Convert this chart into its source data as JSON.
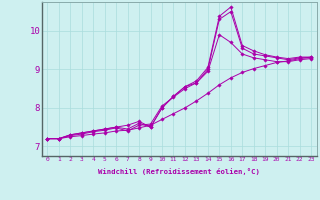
{
  "xlabel": "Windchill (Refroidissement éolien,°C)",
  "background_color": "#cef0f0",
  "grid_color": "#aadddd",
  "line_color": "#aa00aa",
  "xlim": [
    -0.5,
    23.5
  ],
  "ylim": [
    6.75,
    10.75
  ],
  "yticks": [
    7,
    8,
    9,
    10
  ],
  "xticks": [
    0,
    1,
    2,
    3,
    4,
    5,
    6,
    7,
    8,
    9,
    10,
    11,
    12,
    13,
    14,
    15,
    16,
    17,
    18,
    19,
    20,
    21,
    22,
    23
  ],
  "lines": [
    {
      "x": [
        0,
        1,
        2,
        3,
        4,
        5,
        6,
        7,
        8,
        9,
        10,
        11,
        12,
        13,
        14,
        15,
        16,
        17,
        18,
        19,
        20,
        21,
        22,
        23
      ],
      "y": [
        7.2,
        7.2,
        7.3,
        7.35,
        7.4,
        7.45,
        7.5,
        7.55,
        7.65,
        7.5,
        8.0,
        8.3,
        8.55,
        8.65,
        9.0,
        10.3,
        10.5,
        9.55,
        9.4,
        9.35,
        9.3,
        9.25,
        9.3,
        9.3
      ]
    },
    {
      "x": [
        0,
        1,
        2,
        3,
        4,
        5,
        6,
        7,
        8,
        9,
        10,
        11,
        12,
        13,
        14,
        15,
        16,
        17,
        18,
        19,
        20,
        21,
        22,
        23
      ],
      "y": [
        7.2,
        7.2,
        7.25,
        7.28,
        7.32,
        7.35,
        7.4,
        7.42,
        7.48,
        7.55,
        7.7,
        7.85,
        8.0,
        8.18,
        8.38,
        8.6,
        8.78,
        8.92,
        9.02,
        9.1,
        9.18,
        9.22,
        9.28,
        9.32
      ]
    },
    {
      "x": [
        0,
        1,
        2,
        3,
        4,
        5,
        6,
        7,
        8,
        9,
        10,
        11,
        12,
        13,
        14,
        15,
        16,
        17,
        18,
        19,
        20,
        21,
        22,
        23
      ],
      "y": [
        7.2,
        7.2,
        7.28,
        7.32,
        7.38,
        7.42,
        7.48,
        7.4,
        7.55,
        7.58,
        8.05,
        8.28,
        8.5,
        8.65,
        8.95,
        9.9,
        9.7,
        9.4,
        9.3,
        9.25,
        9.2,
        9.2,
        9.25,
        9.28
      ]
    },
    {
      "x": [
        0,
        1,
        2,
        3,
        4,
        5,
        6,
        7,
        8,
        9,
        10,
        11,
        12,
        13,
        14,
        15,
        16,
        17,
        18,
        19,
        20,
        21,
        22,
        23
      ],
      "y": [
        7.2,
        7.2,
        7.3,
        7.35,
        7.4,
        7.45,
        7.5,
        7.45,
        7.6,
        7.5,
        8.0,
        8.3,
        8.55,
        8.7,
        9.05,
        10.38,
        10.62,
        9.62,
        9.48,
        9.38,
        9.32,
        9.28,
        9.32,
        9.32
      ]
    }
  ]
}
